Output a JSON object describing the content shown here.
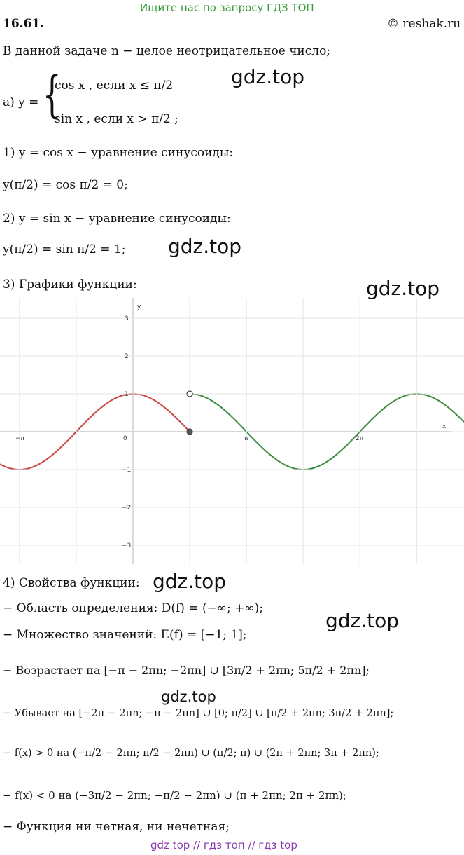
{
  "header": {
    "notice": "Ищите нас по запросу ГДЗ ТОП",
    "number": "16.61.",
    "copyright": "© reshak.ru"
  },
  "text": {
    "intro": "В данной задаче n − целое неотрицательное число;",
    "case_lead": "а) y =",
    "case_1": "cos x , если x ≤ π/2",
    "case_2": "sin x , если x > π/2 ;",
    "step_1": "1) y = cos x − уравнение синусоиды:",
    "value_1": "y(π/2) = cos π/2 = 0;",
    "step_2": "2) y = sin x − уравнение синусоиды:",
    "value_2": "y(π/2) = sin π/2 = 1;",
    "step_3": "3) Графики функции:",
    "step_4": "4) Свойства функции:",
    "domain": "− Область определения:  D(f) = (−∞; +∞);",
    "range": "− Множество значений:  E(f) = [−1; 1];",
    "increasing": "− Возрастает на [−π − 2πn; −2πn] ∪ [3π/2 + 2πn; 5π/2 + 2πn];",
    "decreasing": "− Убывает на [−2π − 2πn; −π − 2πn] ∪ [0; π/2] ∪ [π/2 + 2πn; 3π/2 + 2πn];",
    "positive": "− f(x) > 0 на (−π/2 − 2πn; π/2 − 2πn) ∪ (π/2; π) ∪ (2π + 2πn; 3π + 2πn);",
    "negative": "− f(x) < 0 на (−3π/2 − 2πn; −π/2 − 2πn) ∪ (π + 2πn; 2π + 2πn);",
    "parity": "− Функция ни четная, ни нечетная;"
  },
  "graph": {
    "x_label": "x",
    "y_label": "y",
    "x_ticks": [
      "−π",
      "0",
      "π",
      "2π"
    ],
    "y_ticks": [
      "3",
      "2",
      "1",
      "−1",
      "−2",
      "−3"
    ]
  },
  "watermarks": [
    "gdz.top",
    "gdz.top",
    "gdz.top",
    "gdz.top",
    "gdz.top",
    "gdz.top"
  ],
  "footer": "gdz top  //  гдз топ  //  гдз top"
}
